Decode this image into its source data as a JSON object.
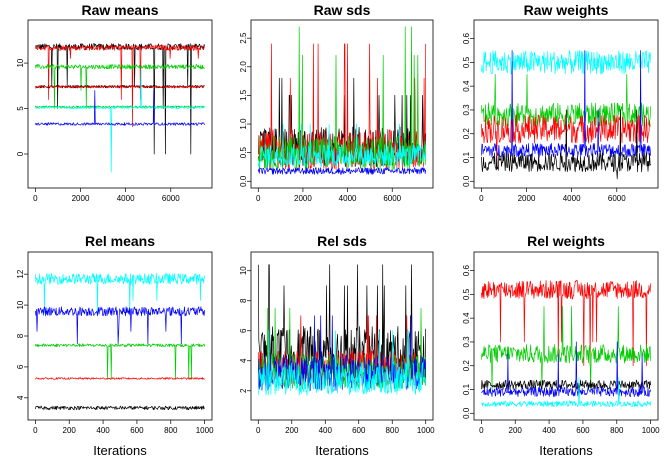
{
  "chart_data": [
    {
      "type": "line",
      "title": "Raw means",
      "xlabel": "",
      "xlim": [
        0,
        7500
      ],
      "ylim": [
        -3,
        14
      ],
      "xticks": [
        "0",
        "2000",
        "4000",
        "6000"
      ],
      "yticks": [
        "0",
        "5",
        "10"
      ],
      "series": [
        {
          "color": "#000000",
          "level": 11.8,
          "noise": 0.35,
          "spikes": 0.02,
          "spike_to": [
            7.5,
            5,
            0
          ]
        },
        {
          "color": "#ff0000",
          "level": 11.7,
          "noise": 0.3,
          "spikes": 0.015,
          "spike_to": [
            10.5,
            6,
            3
          ]
        },
        {
          "color": "#00cd00",
          "level": 9.6,
          "noise": 0.25,
          "spikes": 0.015,
          "spike_to": [
            7,
            9.8,
            5
          ]
        },
        {
          "color": "#00cd00",
          "level": 5.2,
          "noise": 0.1,
          "spikes": 0.0,
          "spike_to": []
        },
        {
          "color": "#000000",
          "level": 7.4,
          "noise": 0.15,
          "spikes": 0.0,
          "spike_to": []
        },
        {
          "color": "#ff0000",
          "level": 7.4,
          "noise": 0.12,
          "spikes": 0.0,
          "spike_to": []
        },
        {
          "color": "#00ffff",
          "level": 5.1,
          "noise": 0.12,
          "spikes": 0.005,
          "spike_to": [
            -2,
            9.3
          ]
        },
        {
          "color": "#0000ff",
          "level": 3.3,
          "noise": 0.15,
          "spikes": 0.005,
          "spike_to": [
            1,
            7
          ]
        }
      ]
    },
    {
      "type": "line",
      "title": "Raw sds",
      "xlabel": "",
      "xlim": [
        0,
        7500
      ],
      "ylim": [
        0,
        2.7
      ],
      "xticks": [
        "0",
        "2000",
        "4000",
        "6000"
      ],
      "yticks": [
        "0.0",
        "0.5",
        "1.0",
        "1.5",
        "2.0",
        "2.5"
      ],
      "series": [
        {
          "color": "#000000",
          "level": 0.6,
          "noise": 0.35,
          "spikes": 0.03,
          "spike_to": [
            1.5,
            1.8
          ]
        },
        {
          "color": "#ff0000",
          "level": 0.55,
          "noise": 0.35,
          "spikes": 0.03,
          "spike_to": [
            1.8,
            2.4
          ]
        },
        {
          "color": "#00cd00",
          "level": 0.5,
          "noise": 0.3,
          "spikes": 0.02,
          "spike_to": [
            2.2,
            2.7
          ]
        },
        {
          "color": "#0000ff",
          "level": 0.18,
          "noise": 0.06,
          "spikes": 0.0,
          "spike_to": []
        },
        {
          "color": "#00ffff",
          "level": 0.45,
          "noise": 0.2,
          "spikes": 0.02,
          "spike_to": [
            1.0
          ]
        }
      ]
    },
    {
      "type": "line",
      "title": "Raw weights",
      "xlabel": "",
      "xlim": [
        0,
        7500
      ],
      "ylim": [
        0,
        0.65
      ],
      "xticks": [
        "0",
        "2000",
        "4000",
        "6000"
      ],
      "yticks": [
        "0.0",
        "0.1",
        "0.2",
        "0.3",
        "0.4",
        "0.5",
        "0.6"
      ],
      "series": [
        {
          "color": "#00ffff",
          "level": 0.5,
          "noise": 0.05,
          "spikes": 0.01,
          "spike_to": [
            0.3,
            0.2
          ]
        },
        {
          "color": "#00cd00",
          "level": 0.28,
          "noise": 0.05,
          "spikes": 0.01,
          "spike_to": [
            0.45,
            0.12
          ]
        },
        {
          "color": "#ff0000",
          "level": 0.22,
          "noise": 0.06,
          "spikes": 0.01,
          "spike_to": [
            0.35,
            0.05
          ]
        },
        {
          "color": "#0000ff",
          "level": 0.13,
          "noise": 0.03,
          "spikes": 0.01,
          "spike_to": [
            0.55,
            0.3
          ]
        },
        {
          "color": "#000000",
          "level": 0.08,
          "noise": 0.04,
          "spikes": 0.01,
          "spike_to": [
            0.3,
            0.01
          ]
        }
      ]
    },
    {
      "type": "line",
      "title": "Rel means",
      "xlabel": "Iterations",
      "xlim": [
        0,
        1000
      ],
      "ylim": [
        3,
        13
      ],
      "xticks": [
        "0",
        "200",
        "400",
        "600",
        "800",
        "1000"
      ],
      "yticks": [
        "4",
        "6",
        "8",
        "10",
        "12"
      ],
      "series": [
        {
          "color": "#00ffff",
          "level": 11.7,
          "noise": 0.35,
          "spikes": 0.02,
          "spike_to": [
            10.3,
            9.5
          ]
        },
        {
          "color": "#0000ff",
          "level": 9.6,
          "noise": 0.3,
          "spikes": 0.02,
          "spike_to": [
            7.5,
            8.3
          ]
        },
        {
          "color": "#00cd00",
          "level": 7.4,
          "noise": 0.1,
          "spikes": 0.01,
          "spike_to": [
            5.2
          ]
        },
        {
          "color": "#ff0000",
          "level": 5.25,
          "noise": 0.06,
          "spikes": 0.0,
          "spike_to": []
        },
        {
          "color": "#000000",
          "level": 3.35,
          "noise": 0.12,
          "spikes": 0.0,
          "spike_to": []
        }
      ]
    },
    {
      "type": "line",
      "title": "Rel sds",
      "xlabel": "Iterations",
      "xlim": [
        0,
        1000
      ],
      "ylim": [
        0.5,
        10.8
      ],
      "xticks": [
        "0",
        "200",
        "400",
        "600",
        "800",
        "1000"
      ],
      "yticks": [
        "2",
        "4",
        "6",
        "8",
        "10"
      ],
      "series": [
        {
          "color": "#000000",
          "level": 4.5,
          "noise": 1.8,
          "spikes": 0.04,
          "spike_to": [
            9,
            10.4
          ]
        },
        {
          "color": "#ff0000",
          "level": 3.5,
          "noise": 1.2,
          "spikes": 0.02,
          "spike_to": [
            7
          ]
        },
        {
          "color": "#00cd00",
          "level": 3.3,
          "noise": 1.2,
          "spikes": 0.02,
          "spike_to": [
            7.5
          ]
        },
        {
          "color": "#0000ff",
          "level": 3.2,
          "noise": 1.2,
          "spikes": 0.02,
          "spike_to": [
            7
          ]
        },
        {
          "color": "#00ffff",
          "level": 2.8,
          "noise": 1.1,
          "spikes": 0.02,
          "spike_to": [
            6
          ]
        }
      ]
    },
    {
      "type": "line",
      "title": "Rel weights",
      "xlabel": "Iterations",
      "xlim": [
        0,
        1000
      ],
      "ylim": [
        0,
        0.65
      ],
      "xticks": [
        "0",
        "200",
        "400",
        "600",
        "800",
        "1000"
      ],
      "yticks": [
        "0.0",
        "0.1",
        "0.2",
        "0.3",
        "0.4",
        "0.5",
        "0.6"
      ],
      "series": [
        {
          "color": "#ff0000",
          "level": 0.52,
          "noise": 0.04,
          "spikes": 0.02,
          "spike_to": [
            0.3,
            0.2
          ]
        },
        {
          "color": "#00cd00",
          "level": 0.25,
          "noise": 0.04,
          "spikes": 0.02,
          "spike_to": [
            0.45,
            0.1
          ]
        },
        {
          "color": "#000000",
          "level": 0.12,
          "noise": 0.02,
          "spikes": 0.0,
          "spike_to": []
        },
        {
          "color": "#0000ff",
          "level": 0.09,
          "noise": 0.02,
          "spikes": 0.02,
          "spike_to": [
            0.3,
            0.25
          ]
        },
        {
          "color": "#00ffff",
          "level": 0.04,
          "noise": 0.012,
          "spikes": 0.01,
          "spike_to": [
            0.15
          ]
        }
      ]
    }
  ]
}
